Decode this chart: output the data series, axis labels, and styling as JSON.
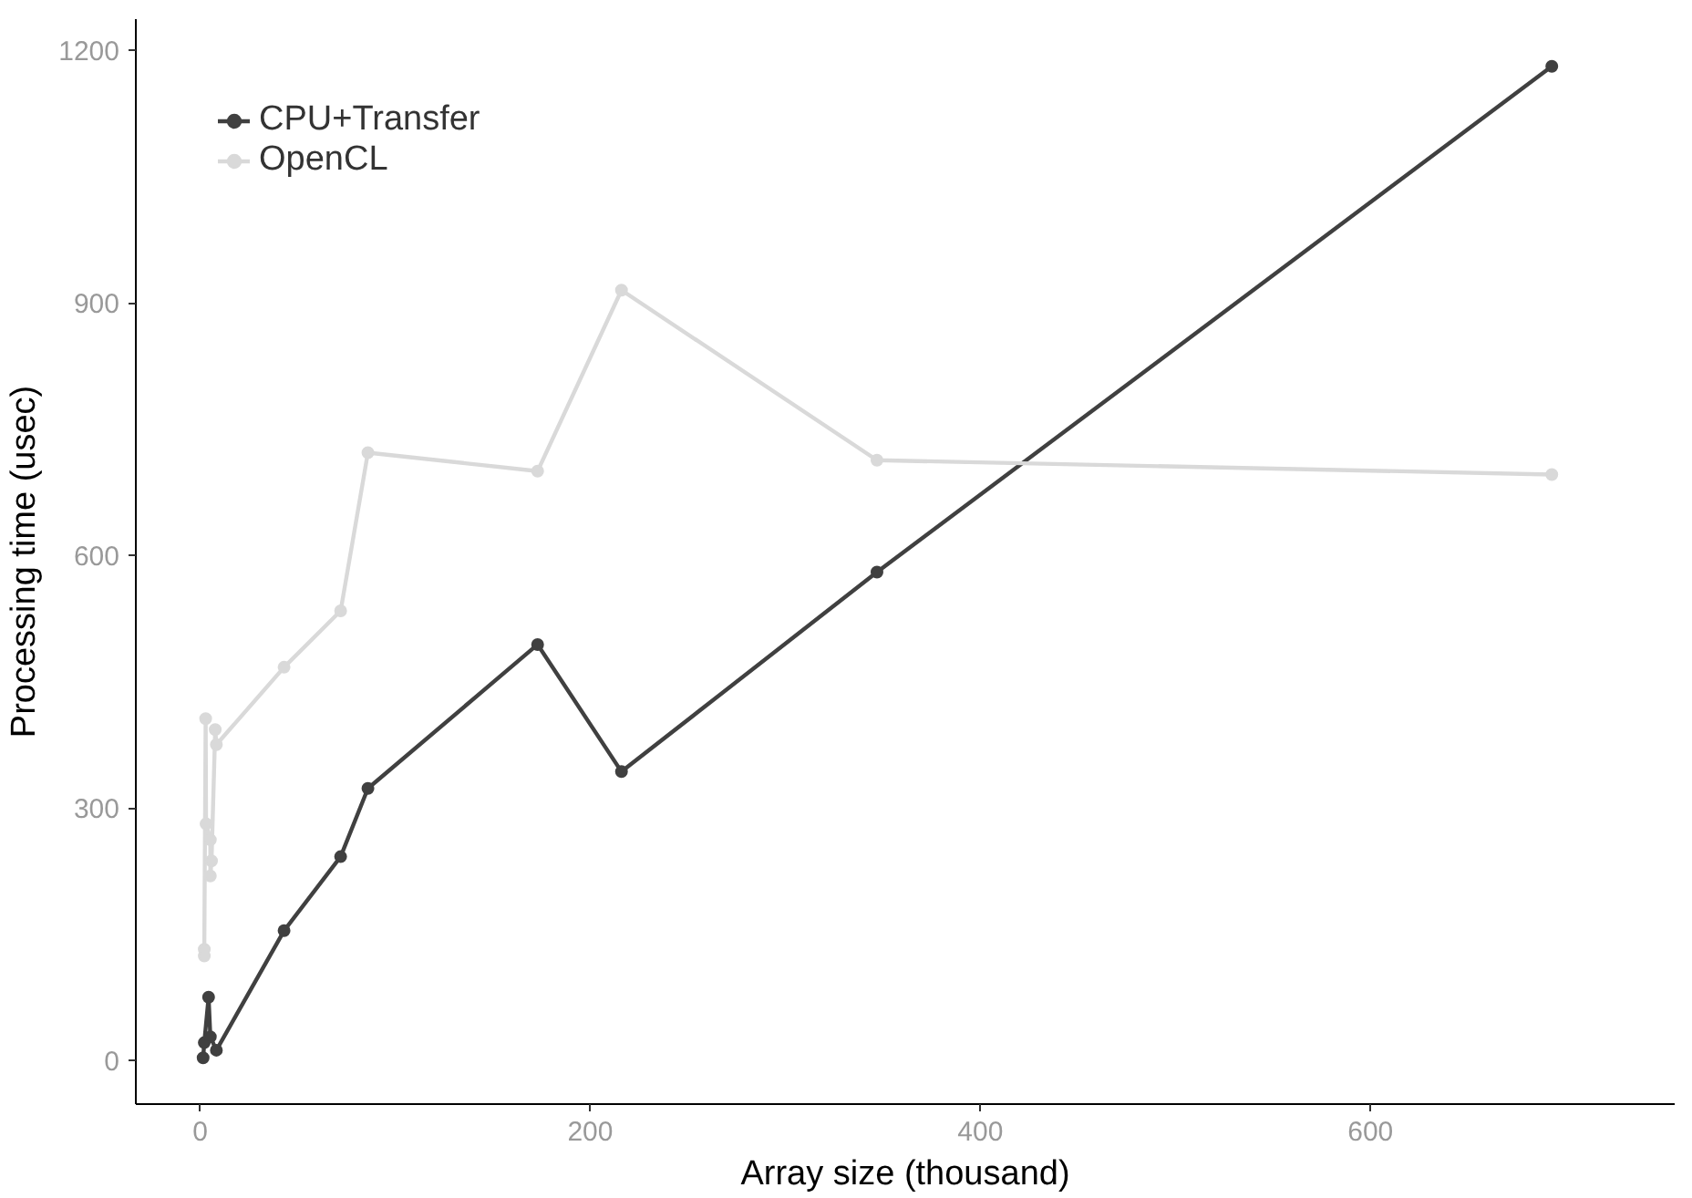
{
  "chart_data": {
    "type": "line",
    "xlabel": "Array size (thousand)",
    "ylabel": "Processing time (usec)",
    "xlim": [
      -33,
      756
    ],
    "ylim": [
      -52,
      1237
    ],
    "xticks": [
      0,
      200,
      400,
      600
    ],
    "yticks": [
      0,
      300,
      600,
      900,
      1200
    ],
    "grid": false,
    "legend": "top left",
    "marker": "circle",
    "line_style": "solid",
    "series": [
      {
        "name": "CPU+Transfer",
        "color": "#404040",
        "x": [
          1.5,
          2.1,
          4.3,
          5.2,
          8.3,
          43,
          72,
          86,
          173,
          216,
          347,
          693
        ],
        "values": [
          3,
          21,
          75,
          28,
          12,
          154,
          242,
          323,
          494,
          343,
          580,
          1181
        ]
      },
      {
        "name": "OpenCL",
        "color": "#d9d9d9",
        "x": [
          2.1,
          2.1,
          2.8,
          3,
          5.2,
          5.2,
          5.8,
          7.7,
          8.3,
          43,
          72,
          86,
          173,
          216,
          347,
          693
        ],
        "values": [
          124,
          132,
          406,
          281,
          262,
          219,
          237,
          393,
          375,
          467,
          534,
          722,
          700,
          915,
          713,
          696
        ]
      }
    ]
  }
}
